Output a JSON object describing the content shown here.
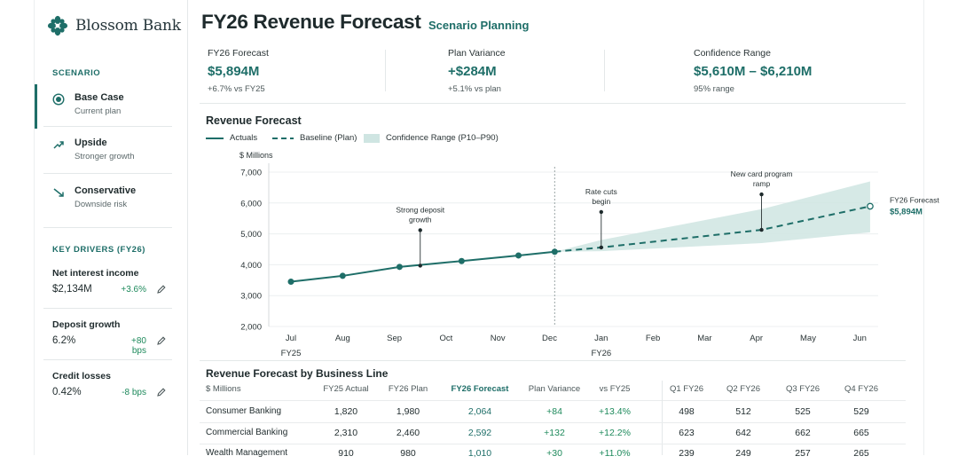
{
  "brand": {
    "name": "Blossom Bank",
    "icon": "blossom-logo-icon"
  },
  "header": {
    "title": "FY26 Revenue Forecast",
    "subtitle": "Scenario Planning"
  },
  "sidebar": {
    "scenario_label": "SCENARIO",
    "scenarios": [
      {
        "title": "Base Case",
        "subtitle": "Current plan",
        "icon": "radio-selected-icon",
        "active": true
      },
      {
        "title": "Upside",
        "subtitle": "Stronger growth",
        "icon": "trend-up-icon"
      },
      {
        "title": "Conservative",
        "subtitle": "Downside risk",
        "icon": "trend-down-icon"
      }
    ],
    "drivers_label": "KEY DRIVERS (FY26)",
    "drivers": [
      {
        "name": "Net interest income",
        "value": "$2,134M",
        "change": "+3.6%"
      },
      {
        "name": "Deposit growth",
        "value": "6.2%",
        "change": "+80 bps"
      },
      {
        "name": "Credit losses",
        "value": "0.42%",
        "change": "-8 bps"
      }
    ]
  },
  "kpis": [
    {
      "label": "FY26 Forecast",
      "value": "$5,894M",
      "sub": "+6.7% vs FY25"
    },
    {
      "label": "Plan Variance",
      "value": "+$284M",
      "sub": "+5.1% vs plan"
    },
    {
      "label": "Confidence Range",
      "value": "$5,610M – $6,210M",
      "sub": "95% range"
    }
  ],
  "chart_data": {
    "type": "line",
    "title": "Revenue Forecast",
    "ylabel": "$ Millions",
    "ylim": [
      2000,
      7000
    ],
    "yticks": [
      "2,000",
      "3,000",
      "4,000",
      "5,000",
      "6,000",
      "7,000"
    ],
    "ytick_values": [
      2000,
      3000,
      4000,
      5000,
      6000,
      7000
    ],
    "categories": [
      "Jul",
      "Aug",
      "Sep",
      "Oct",
      "Nov",
      "Dec",
      "Jan",
      "Feb",
      "Mar",
      "Apr",
      "May",
      "Jun"
    ],
    "year_labels": [
      {
        "at": "Jul",
        "label": "FY25"
      },
      {
        "at": "Jan",
        "label": "FY26"
      }
    ],
    "legend": [
      "Actuals",
      "Baseline (Plan)",
      "Confidence Range (P10–P90)"
    ],
    "series": [
      {
        "name": "Actuals",
        "x": [
          0,
          1,
          2.1,
          3.3,
          4.4,
          5.1
        ],
        "values": [
          3450,
          3640,
          3930,
          4120,
          4300,
          4420
        ]
      },
      {
        "name": "Baseline (Plan)",
        "x": [
          5.1,
          6,
          9.1,
          11.2
        ],
        "values": [
          4420,
          4560,
          5130,
          5894
        ]
      },
      {
        "name": "Confidence Range (P10–P90)",
        "x": [
          5.1,
          6,
          9.1,
          11.2
        ],
        "low": [
          4420,
          4440,
          4700,
          5050
        ],
        "high": [
          4420,
          4800,
          5800,
          6700
        ]
      }
    ],
    "annotations": [
      {
        "text": [
          "Strong deposit",
          "growth"
        ],
        "x": 2.5,
        "y": 3970
      },
      {
        "text": [
          "Rate cuts",
          "begin"
        ],
        "x": 6,
        "y": 4560
      },
      {
        "text": [
          "New card program",
          "ramp"
        ],
        "x": 9.1,
        "y": 5130
      }
    ],
    "end_label": {
      "title": "FY26 Forecast",
      "value": "$5,894M"
    },
    "colors": {
      "line": "#1e6e68",
      "band": "#cfe5e2"
    }
  },
  "table": {
    "title": "Revenue Forecast by Business Line",
    "headers": [
      "$ Millions",
      "FY25 Actual",
      "FY26 Plan",
      "FY26 Forecast",
      "Plan Variance",
      "vs FY25",
      "Q1 FY26",
      "Q2 FY26",
      "Q3 FY26",
      "Q4 FY26"
    ],
    "rows": [
      [
        "Consumer Banking",
        "1,820",
        "1,980",
        "2,064",
        "+84",
        "+13.4%",
        "498",
        "512",
        "525",
        "529"
      ],
      [
        "Commercial Banking",
        "2,310",
        "2,460",
        "2,592",
        "+132",
        "+12.2%",
        "623",
        "642",
        "662",
        "665"
      ],
      [
        "Wealth Management",
        "910",
        "980",
        "1,010",
        "+30",
        "+11.0%",
        "239",
        "249",
        "257",
        "265"
      ]
    ]
  }
}
